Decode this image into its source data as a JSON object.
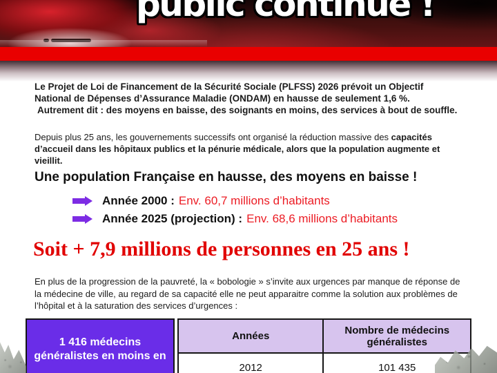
{
  "header": {
    "title": "public continue !",
    "bar_color": "#e90000"
  },
  "intro": {
    "p1_lines": [
      "Le Projet de Loi de Financement de la Sécurité Sociale (PLFSS) 2026 prévoit un Objectif",
      "National de Dépenses d’Assurance Maladie (ONDAM) en hausse de seulement 1,6 %.",
      "Autrement dit : des moyens en baisse, des soignants en moins, des services à bout de souffle."
    ],
    "p2_line1_normal": "Depuis plus 25 ans, les gouvernements successifs ont organisé la réduction massive des ",
    "p2_line1_bold": "capacités",
    "p2_line2_bold": "d’accueil dans les hôpitaux publics et la pénurie médicale, alors que la population augmente et vieillit."
  },
  "population": {
    "heading": "Une population Française en hausse, des moyens en baisse !",
    "items": [
      {
        "label": "Année 2000 :",
        "value": "Env. 60,7 millions d’habitants"
      },
      {
        "label": "Année 2025 (projection) :",
        "value": "Env. 68,6 millions d’habitants"
      }
    ],
    "big_red_heading": "Soit + 7,9 millions de personnes en 25 ans !"
  },
  "urgences": {
    "lines": [
      "En plus de la progression de la pauvreté, la « bobologie » s’invite aux urgences par manque de réponse de",
      "la médecine de ville, au regard de sa capacité elle ne peut apparaitre comme la solution aux problèmes de",
      "l’hôpital et à la saturation des services d’urgences :"
    ]
  },
  "table": {
    "side_label": "1 416 médecins généralistes en moins en",
    "columns": [
      "Années",
      "Nombre de médecins généralistes"
    ],
    "rows": [
      [
        "2012",
        "101 435"
      ]
    ]
  },
  "colors": {
    "red_bar": "#e90000",
    "big_red_text": "#e10000",
    "value_red_text": "#ec1c24",
    "arrow_purple": "#7d2ce4",
    "cell_purple": "#6a2de8",
    "header_lavender": "#d7c4ee",
    "border_black": "#151515"
  }
}
